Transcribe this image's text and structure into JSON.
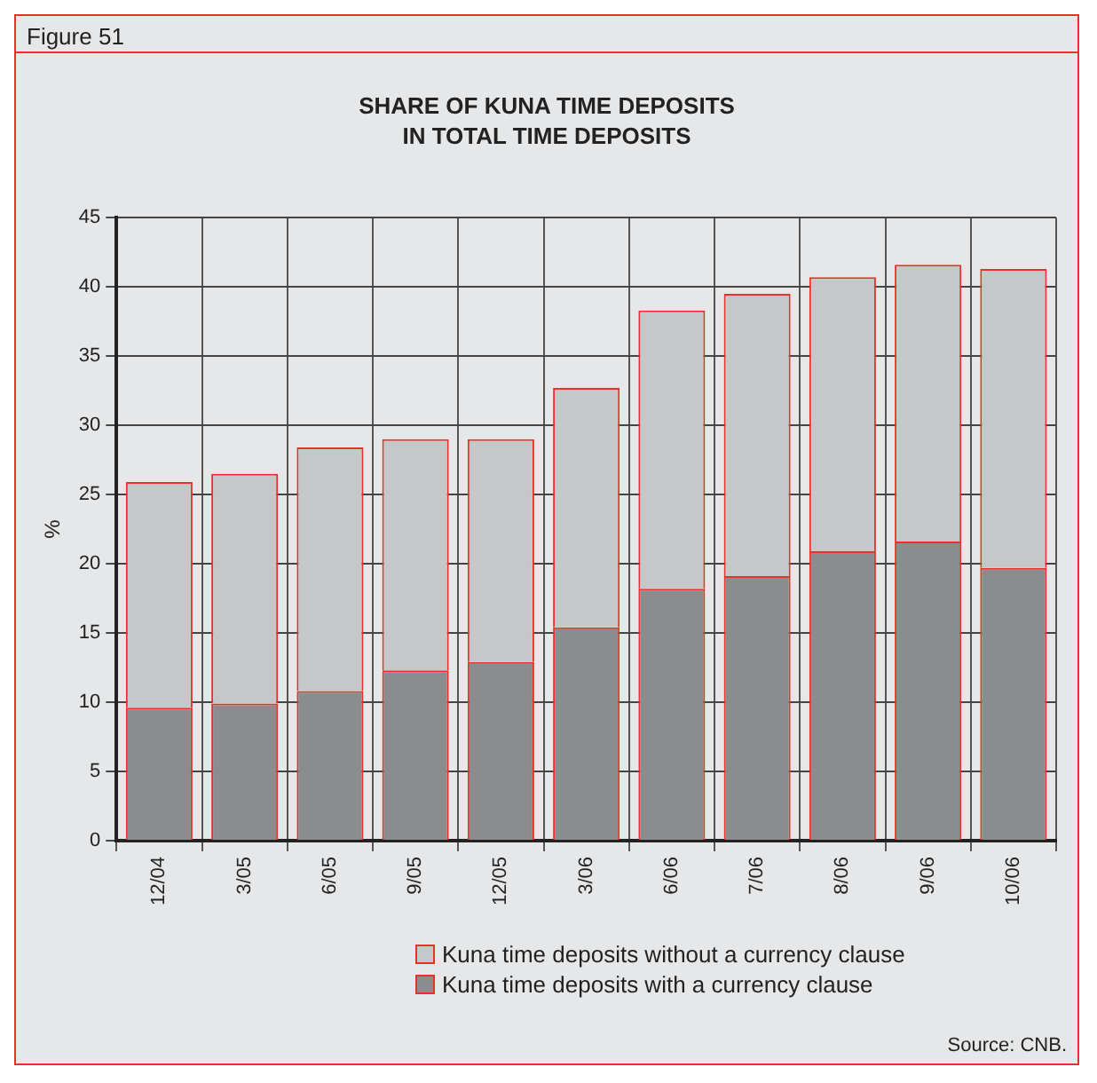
{
  "chart_data": {
    "type": "bar",
    "title": "SHARE OF KUNA TIME DEPOSITS\nIN TOTAL TIME DEPOSITS",
    "ylabel": "%",
    "categories": [
      "12/04",
      "3/05",
      "6/05",
      "9/05",
      "12/05",
      "3/06",
      "6/06",
      "7/06",
      "8/06",
      "9/06",
      "10/06"
    ],
    "stacked": true,
    "series": [
      {
        "name": "Kuna time deposits with a currency clause",
        "color": "#8b8c8e",
        "values": [
          9.6,
          9.9,
          10.8,
          12.3,
          12.9,
          15.4,
          18.2,
          19.1,
          20.9,
          21.6,
          19.7
        ]
      },
      {
        "name": "Kuna time deposits without a currency clause",
        "color": "#c6c7c9",
        "values": [
          16.3,
          16.6,
          17.6,
          16.7,
          16.1,
          17.3,
          20.1,
          20.4,
          19.8,
          20.0,
          21.6
        ]
      }
    ],
    "ylim": [
      0,
      45
    ],
    "yticks": [
      0,
      5,
      10,
      15,
      20,
      25,
      30,
      35,
      40,
      45
    ],
    "grid": true,
    "legend": "bottom",
    "annotations": [
      "Figure 51",
      "Source: CNB."
    ]
  }
}
